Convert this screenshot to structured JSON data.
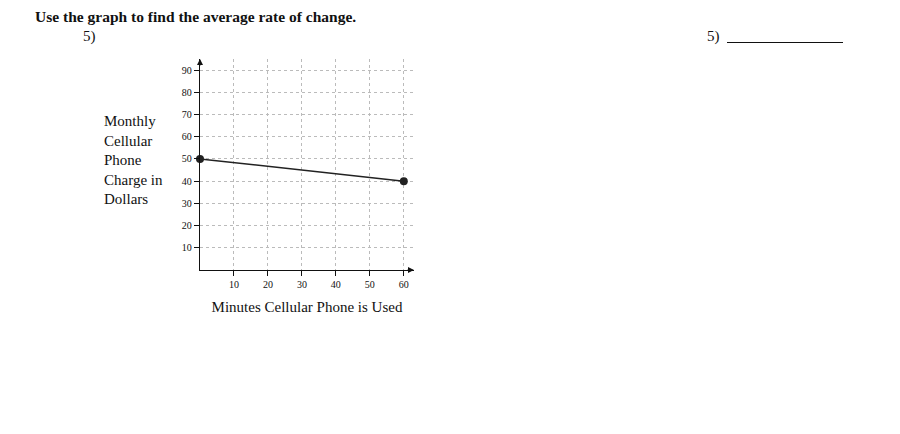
{
  "header": {
    "instruction": "Use the graph to find the average rate of change.",
    "number": "5)",
    "answer_label": "5)"
  },
  "chart_data": {
    "type": "line",
    "xlabel": "Minutes Cellular Phone is Used",
    "ylabel": "Monthly\nCellular\nPhone\nCharge in\nDollars",
    "x": [
      0,
      60
    ],
    "values": [
      50,
      40
    ],
    "color": "#222222",
    "marker": "circle",
    "xlim": [
      0,
      63
    ],
    "xticks": [
      10,
      20,
      30,
      40,
      50,
      60
    ],
    "ylim": [
      0,
      95
    ],
    "yticks": [
      10,
      20,
      30,
      40,
      50,
      60,
      70,
      80,
      90
    ],
    "grid": true
  }
}
